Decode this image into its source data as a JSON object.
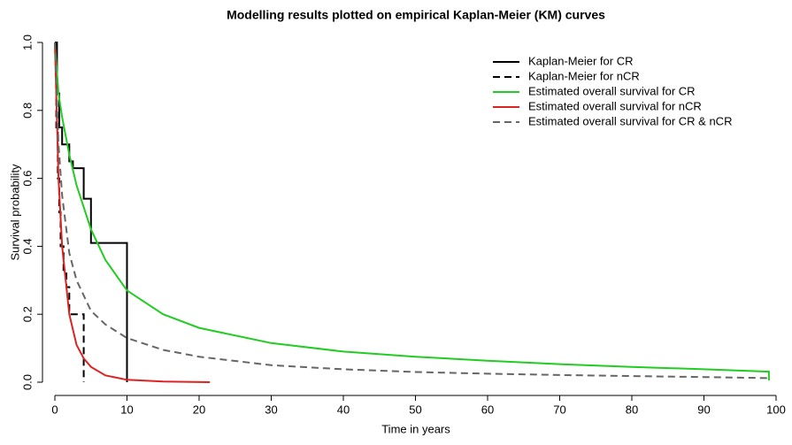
{
  "chart_data": {
    "type": "line",
    "title": "Modelling results plotted on empirical Kaplan-Meier (KM) curves",
    "x_label": "Time in years",
    "y_label": "Survival probability",
    "xlim": [
      0,
      100
    ],
    "ylim": [
      0,
      1
    ],
    "xticks": [
      0,
      10,
      20,
      30,
      40,
      50,
      60,
      70,
      80,
      90,
      100
    ],
    "yticks": [
      {
        "value": 0,
        "label": "0.0"
      },
      0.2,
      0.4,
      0.6,
      0.8,
      {
        "value": 1,
        "label": "1.0"
      }
    ],
    "legend_position": "top-right",
    "series": [
      {
        "name": "Kaplan-Meier for CR",
        "color": "#000000",
        "dashed": false,
        "x": [
          0,
          0.3,
          0.3,
          0.6,
          0.6,
          1,
          1,
          2,
          2,
          2.5,
          2.5,
          4,
          4,
          5,
          5,
          10,
          10
        ],
        "values": [
          1,
          1,
          0.85,
          0.85,
          0.75,
          0.75,
          0.7,
          0.7,
          0.65,
          0.65,
          0.63,
          0.63,
          0.54,
          0.54,
          0.41,
          0.41,
          0
        ]
      },
      {
        "name": "Kaplan-Meier for nCR",
        "color": "#000000",
        "dashed": true,
        "x": [
          0,
          0.2,
          0.2,
          0.4,
          0.4,
          0.6,
          0.6,
          0.8,
          0.8,
          1.2,
          1.2,
          1.6,
          1.6,
          2,
          2,
          4,
          4
        ],
        "values": [
          1,
          1,
          0.75,
          0.75,
          0.6,
          0.6,
          0.5,
          0.5,
          0.4,
          0.4,
          0.32,
          0.32,
          0.28,
          0.28,
          0.2,
          0.2,
          0
        ]
      },
      {
        "name": "Estimated overall survival for CR",
        "color": "#22cc22",
        "dashed": false,
        "x": [
          0,
          0.5,
          1,
          2,
          3,
          5,
          7,
          10,
          15,
          20,
          30,
          40,
          50,
          60,
          70,
          80,
          90,
          99,
          99
        ],
        "values": [
          1,
          0.85,
          0.78,
          0.67,
          0.58,
          0.45,
          0.36,
          0.27,
          0.2,
          0.16,
          0.115,
          0.09,
          0.075,
          0.063,
          0.053,
          0.045,
          0.038,
          0.031,
          0.005
        ]
      },
      {
        "name": "Estimated overall survival for nCR",
        "color": "#dd2222",
        "dashed": false,
        "x": [
          0,
          0.5,
          1,
          2,
          3,
          4,
          5,
          7,
          10,
          15,
          21.5
        ],
        "values": [
          1,
          0.6,
          0.4,
          0.2,
          0.11,
          0.07,
          0.045,
          0.02,
          0.007,
          0.002,
          0
        ]
      },
      {
        "name": "Estimated overall survival for CR & nCR",
        "color": "#666666",
        "dashed": true,
        "x": [
          0,
          0.5,
          1,
          2,
          3,
          5,
          7,
          10,
          15,
          20,
          30,
          40,
          50,
          60,
          70,
          80,
          90,
          99
        ],
        "values": [
          1,
          0.7,
          0.55,
          0.38,
          0.3,
          0.21,
          0.17,
          0.13,
          0.095,
          0.075,
          0.05,
          0.038,
          0.03,
          0.025,
          0.021,
          0.018,
          0.015,
          0.012
        ]
      }
    ]
  }
}
